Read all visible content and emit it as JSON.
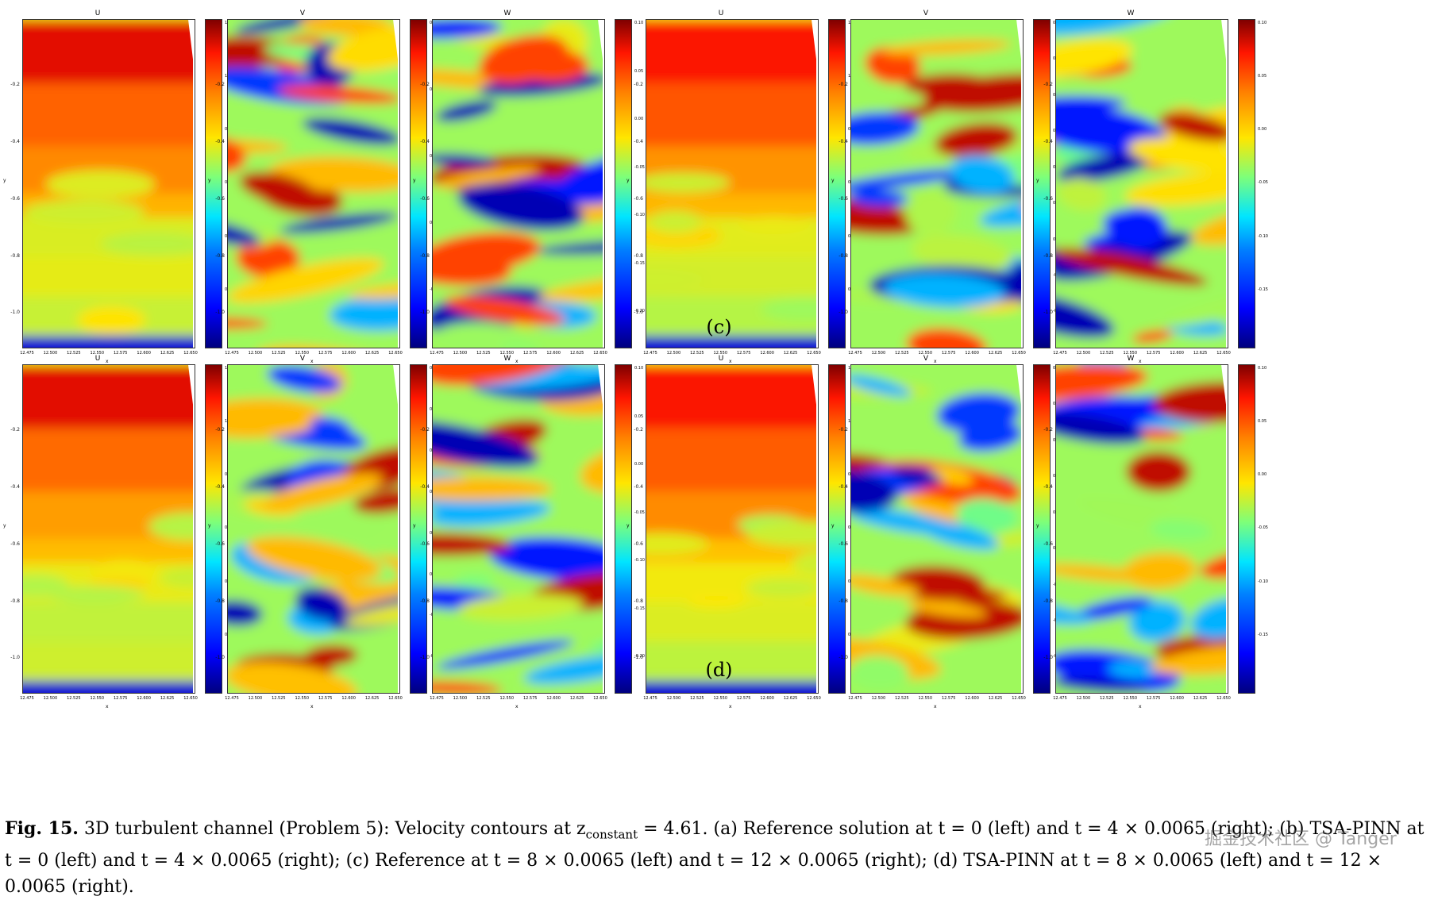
{
  "rows": [
    {
      "label": "(c)",
      "panels": [
        {
          "title": "U",
          "cb": [
            "1.2",
            "1.0",
            "0.8",
            "0.6",
            "0.4",
            "0.2"
          ],
          "kind": "u",
          "seed": 1
        },
        {
          "title": "V",
          "cb": [
            "0.15",
            "0.10",
            "0.05",
            "0.00",
            "-0.05"
          ],
          "kind": "v",
          "seed": 2
        },
        {
          "title": "W",
          "cb": [
            "0.10",
            "0.05",
            "0.00",
            "-0.05",
            "-0.10",
            "-0.15",
            "-0.20"
          ],
          "kind": "w",
          "seed": 3
        },
        {
          "title": "U",
          "cb": [
            "1.2",
            "1.0",
            "0.8",
            "0.6",
            "0.4",
            "0.2"
          ],
          "kind": "u",
          "seed": 4
        },
        {
          "title": "V",
          "cb": [
            "0.150",
            "0.125",
            "0.100",
            "0.075",
            "0.050",
            "0.025",
            "0.000",
            "-0.025",
            "-0.050"
          ],
          "kind": "v",
          "seed": 5
        },
        {
          "title": "W",
          "cb": [
            "0.10",
            "0.05",
            "0.00",
            "-0.05",
            "-0.10",
            "-0.15"
          ],
          "kind": "w",
          "seed": 6
        }
      ]
    },
    {
      "label": "(d)",
      "panels": [
        {
          "title": "U",
          "cb": [
            "1.2",
            "1.0",
            "0.8",
            "0.6",
            "0.4",
            "0.2"
          ],
          "kind": "u",
          "seed": 7
        },
        {
          "title": "V",
          "cb": [
            "0.125",
            "0.100",
            "0.075",
            "0.050",
            "0.025",
            "0.000",
            "-0.025",
            "-0.050"
          ],
          "kind": "v",
          "seed": 8
        },
        {
          "title": "W",
          "cb": [
            "0.10",
            "0.05",
            "0.00",
            "-0.05",
            "-0.10",
            "-0.15",
            "-0.20"
          ],
          "kind": "w",
          "seed": 9
        },
        {
          "title": "U",
          "cb": [
            "1.2",
            "1.0",
            "0.8",
            "0.6",
            "0.4",
            "0.2"
          ],
          "kind": "u",
          "seed": 10
        },
        {
          "title": "V",
          "cb": [
            "0.125",
            "0.100",
            "0.075",
            "0.050",
            "0.025",
            "0.000",
            "-0.025",
            "-0.050",
            "-0.075"
          ],
          "kind": "v",
          "seed": 11
        },
        {
          "title": "W",
          "cb": [
            "0.10",
            "0.05",
            "0.00",
            "-0.05",
            "-0.10",
            "-0.15"
          ],
          "kind": "w",
          "seed": 12
        }
      ]
    }
  ],
  "y_ticks": [
    "-0.2",
    "-0.4",
    "-0.6",
    "-0.8",
    "-1.0"
  ],
  "x_ticks": [
    "12.475",
    "12.500",
    "12.525",
    "12.550",
    "12.575",
    "12.600",
    "12.625",
    "12.650"
  ],
  "x_label": "x",
  "y_label": "y",
  "caption": {
    "fig_label": "Fig. 15.",
    "text_1": " 3D turbulent channel (Problem 5): Velocity contours at z",
    "sub": "constant",
    "text_2": " = 4.61. (a) Reference solution at t = 0 (left) and t = 4 × 0.0065 (right); (b) TSA-PINN at t = 0 (left) and t = 4 × 0.0065 (right); (c) Reference at t = 8 × 0.0065 (left) and t = 12 × 0.0065 (right); (d) TSA-PINN at t = 8 × 0.0065 (left) and t = 12 × 0.0065 (right)."
  },
  "watermark": "掘金技术社区 @ Tanger"
}
